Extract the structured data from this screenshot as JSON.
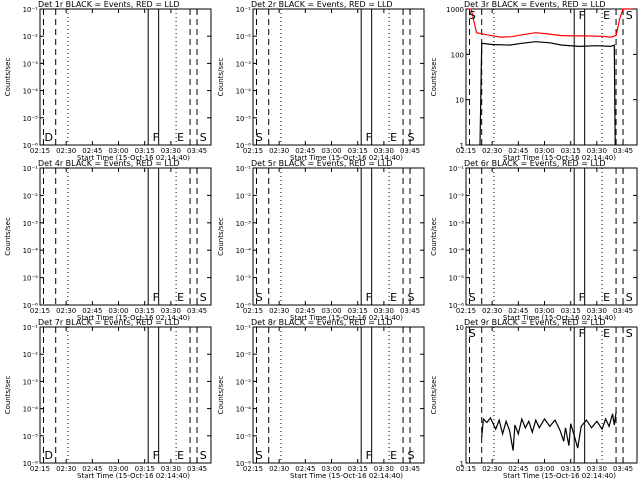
{
  "chart_data": [
    {
      "type": "line",
      "title": "Det 1r BLACK = Events, RED = LLD",
      "ylabel": "Counts/sec",
      "xlabel": "Start Time (15-Oct-16 02:14:40)",
      "xticks": [
        "02:15",
        "02:30",
        "02:45",
        "03:00",
        "03:15",
        "03:30",
        "03:45"
      ],
      "xlim": [
        "02:15",
        "03:53"
      ],
      "yscale": "log",
      "ylim": [
        1e-06,
        0.1
      ],
      "yticks": [
        "10⁻⁶",
        "10⁻⁵",
        "10⁻⁴",
        "10⁻³",
        "10⁻²",
        "10⁻¹"
      ],
      "markers": [
        {
          "label": "D",
          "time": "02:17"
        },
        {
          "label": "F",
          "time": "03:19"
        },
        {
          "label": "E",
          "time": "03:33"
        },
        {
          "label": "S",
          "time": "03:46"
        }
      ],
      "series": []
    },
    {
      "type": "line",
      "title": "Det 2r BLACK = Events, RED = LLD",
      "ylabel": "Counts/sec",
      "xlabel": "Start Time (15-Oct-16 02:14:40)",
      "xticks": [
        "02:15",
        "02:30",
        "02:45",
        "03:00",
        "03:15",
        "03:30",
        "03:45"
      ],
      "xlim": [
        "02:15",
        "03:53"
      ],
      "yscale": "log",
      "ylim": [
        1e-06,
        0.1
      ],
      "yticks": [
        "10⁻⁶",
        "10⁻⁵",
        "10⁻⁴",
        "10⁻³",
        "10⁻²",
        "10⁻¹"
      ],
      "markers": [
        {
          "label": "S",
          "time": "02:16"
        },
        {
          "label": "F",
          "time": "03:19"
        },
        {
          "label": "E",
          "time": "03:33"
        },
        {
          "label": "S",
          "time": "03:43"
        }
      ],
      "series": []
    },
    {
      "type": "line",
      "title": "Det 3r BLACK = Events, RED = LLD",
      "ylabel": "Counts/sec",
      "xlabel": "Start Time (15-Oct-16 02:14:40)",
      "xticks": [
        "02:15",
        "02:30",
        "02:45",
        "03:00",
        "03:15",
        "03:30",
        "03:45"
      ],
      "xlim": [
        "02:15",
        "03:53"
      ],
      "yscale": "log",
      "ylim": [
        1,
        1000
      ],
      "yticks": [
        "1",
        "10",
        "100",
        "1000"
      ],
      "markers": [
        {
          "label": "S",
          "time": "02:16"
        },
        {
          "label": "F",
          "time": "03:19"
        },
        {
          "label": "E",
          "time": "03:33"
        },
        {
          "label": "S",
          "time": "03:46"
        }
      ],
      "series": [
        {
          "color": "#ff0000",
          "points": [
            [
              "02:16",
              1000
            ],
            [
              "02:18",
              1000
            ],
            [
              "02:21",
              300
            ],
            [
              "02:27",
              270
            ],
            [
              "02:35",
              240
            ],
            [
              "02:41",
              245
            ],
            [
              "02:47",
              270
            ],
            [
              "02:55",
              300
            ],
            [
              "03:03",
              280
            ],
            [
              "03:09",
              260
            ],
            [
              "03:15",
              255
            ],
            [
              "03:25",
              255
            ],
            [
              "03:33",
              250
            ],
            [
              "03:38",
              240
            ],
            [
              "03:41",
              260
            ],
            [
              "03:43",
              600
            ],
            [
              "03:45",
              1000
            ],
            [
              "03:50",
              1000
            ]
          ]
        },
        {
          "color": "#000000",
          "points": [
            [
              "02:23",
              1
            ],
            [
              "02:24",
              175
            ],
            [
              "02:30",
              165
            ],
            [
              "02:40",
              160
            ],
            [
              "02:47",
              175
            ],
            [
              "02:55",
              190
            ],
            [
              "03:03",
              180
            ],
            [
              "03:10",
              160
            ],
            [
              "03:20",
              150
            ],
            [
              "03:30",
              155
            ],
            [
              "03:38",
              150
            ],
            [
              "03:40",
              160
            ],
            [
              "03:40.5",
              1
            ]
          ]
        }
      ]
    },
    {
      "type": "line",
      "title": "Det 4r BLACK = Events, RED = LLD",
      "ylabel": "Counts/sec",
      "xlabel": "Start Time (15-Oct-16 02:14:40)",
      "xticks": [
        "02:15",
        "02:30",
        "02:45",
        "03:00",
        "03:15",
        "03:30",
        "03:45"
      ],
      "xlim": [
        "02:15",
        "03:53"
      ],
      "yscale": "log",
      "ylim": [
        1e-06,
        0.1
      ],
      "yticks": [
        "10⁻⁶",
        "10⁻⁵",
        "10⁻⁴",
        "10⁻³",
        "10⁻²",
        "10⁻¹"
      ],
      "markers": [
        {
          "label": "F",
          "time": "03:19"
        },
        {
          "label": "E",
          "time": "03:33"
        },
        {
          "label": "S",
          "time": "03:46"
        }
      ],
      "series": []
    },
    {
      "type": "line",
      "title": "Det 5r BLACK = Events, RED = LLD",
      "ylabel": "Counts/sec",
      "xlabel": "Start Time (15-Oct-16 02:14:40)",
      "xticks": [
        "02:15",
        "02:30",
        "02:45",
        "03:00",
        "03:15",
        "03:30",
        "03:45"
      ],
      "xlim": [
        "02:15",
        "03:53"
      ],
      "yscale": "log",
      "ylim": [
        1e-06,
        0.1
      ],
      "yticks": [
        "10⁻⁶",
        "10⁻⁵",
        "10⁻⁴",
        "10⁻³",
        "10⁻²",
        "10⁻¹"
      ],
      "markers": [
        {
          "label": "S",
          "time": "02:16"
        },
        {
          "label": "F",
          "time": "03:19"
        },
        {
          "label": "E",
          "time": "03:33"
        },
        {
          "label": "S",
          "time": "03:43"
        }
      ],
      "series": []
    },
    {
      "type": "line",
      "title": "Det 6r BLACK = Events, RED = LLD",
      "ylabel": "Counts/sec",
      "xlabel": "Start Time (15-Oct-16 02:14:40)",
      "xticks": [
        "02:15",
        "02:30",
        "02:45",
        "03:00",
        "03:15",
        "03:30",
        "03:45"
      ],
      "xlim": [
        "02:15",
        "03:53"
      ],
      "yscale": "log",
      "ylim": [
        1e-06,
        0.1
      ],
      "yticks": [
        "10⁻⁶",
        "10⁻⁵",
        "10⁻⁴",
        "10⁻³",
        "10⁻²",
        "10⁻¹"
      ],
      "markers": [
        {
          "label": "S",
          "time": "02:16"
        },
        {
          "label": "F",
          "time": "03:19"
        },
        {
          "label": "E",
          "time": "03:33"
        },
        {
          "label": "S",
          "time": "03:46"
        }
      ],
      "series": []
    },
    {
      "type": "line",
      "title": "Det 7r BLACK = Events, RED = LLD",
      "ylabel": "Counts/sec",
      "xlabel": "Start Time (15-Oct-16 02:14:40)",
      "xticks": [
        "02:15",
        "02:30",
        "02:45",
        "03:00",
        "03:15",
        "03:30",
        "03:45"
      ],
      "xlim": [
        "02:15",
        "03:53"
      ],
      "yscale": "log",
      "ylim": [
        1e-06,
        0.1
      ],
      "yticks": [
        "10⁻⁶",
        "10⁻⁵",
        "10⁻⁴",
        "10⁻³",
        "10⁻²",
        "10⁻¹"
      ],
      "markers": [
        {
          "label": "D",
          "time": "02:17"
        },
        {
          "label": "F",
          "time": "03:19"
        },
        {
          "label": "E",
          "time": "03:33"
        },
        {
          "label": "S",
          "time": "03:46"
        }
      ],
      "series": []
    },
    {
      "type": "line",
      "title": "Det 8r BLACK = Events, RED = LLD",
      "ylabel": "Counts/sec",
      "xlabel": "Start Time (15-Oct-16 02:14:40)",
      "xticks": [
        "02:15",
        "02:30",
        "02:45",
        "03:00",
        "03:15",
        "03:30",
        "03:45"
      ],
      "xlim": [
        "02:15",
        "03:53"
      ],
      "yscale": "log",
      "ylim": [
        1e-06,
        0.1
      ],
      "yticks": [
        "10⁻⁶",
        "10⁻⁵",
        "10⁻⁴",
        "10⁻³",
        "10⁻²",
        "10⁻¹"
      ],
      "markers": [
        {
          "label": "S",
          "time": "02:16"
        },
        {
          "label": "F",
          "time": "03:19"
        },
        {
          "label": "E",
          "time": "03:33"
        },
        {
          "label": "S",
          "time": "03:43"
        }
      ],
      "series": []
    },
    {
      "type": "line",
      "title": "Det 9r BLACK = Events, RED = LLD",
      "ylabel": "Counts/sec",
      "xlabel": "Start Time (15-Oct-16 02:14:40)",
      "xticks": [
        "02:15",
        "02:30",
        "02:45",
        "03:00",
        "03:15",
        "03:30",
        "03:45"
      ],
      "xlim": [
        "02:15",
        "03:53"
      ],
      "yscale": "log",
      "ylim": [
        1,
        40
      ],
      "yticks": [
        "1",
        "10"
      ],
      "markers": [
        {
          "label": "S",
          "time": "02:16"
        },
        {
          "label": "F",
          "time": "03:19"
        },
        {
          "label": "E",
          "time": "03:33"
        },
        {
          "label": "S",
          "time": "03:46"
        }
      ],
      "series": [
        {
          "color": "#000000",
          "points": [
            [
              "02:24",
              2
            ],
            [
              "02:25",
              3.3
            ],
            [
              "02:27",
              3
            ],
            [
              "02:29",
              3.4
            ],
            [
              "02:32",
              2.5
            ],
            [
              "02:34",
              3.2
            ],
            [
              "02:36",
              2.2
            ],
            [
              "02:38",
              3.1
            ],
            [
              "02:40",
              2.4
            ],
            [
              "02:42",
              1.4
            ],
            [
              "02:43",
              2.8
            ],
            [
              "02:45",
              2.2
            ],
            [
              "02:47",
              3.3
            ],
            [
              "02:49",
              2.6
            ],
            [
              "02:51",
              3.1
            ],
            [
              "02:53",
              2.3
            ],
            [
              "02:55",
              3.2
            ],
            [
              "02:57",
              2.6
            ],
            [
              "03:00",
              3.3
            ],
            [
              "03:03",
              2.7
            ],
            [
              "03:06",
              3.2
            ],
            [
              "03:09",
              2.4
            ],
            [
              "03:11",
              1.8
            ],
            [
              "03:12",
              2.6
            ],
            [
              "03:14",
              1.6
            ],
            [
              "03:15",
              2.9
            ],
            [
              "03:17",
              2.1
            ],
            [
              "03:19",
              1.5
            ],
            [
              "03:21",
              2.7
            ],
            [
              "03:24",
              3.2
            ],
            [
              "03:27",
              2.6
            ],
            [
              "03:30",
              3.1
            ],
            [
              "03:33",
              2.5
            ],
            [
              "03:35",
              3.3
            ],
            [
              "03:37",
              2.7
            ],
            [
              "03:39",
              3.8
            ],
            [
              "03:40",
              2.8
            ],
            [
              "03:41",
              4.0
            ]
          ]
        }
      ]
    }
  ]
}
